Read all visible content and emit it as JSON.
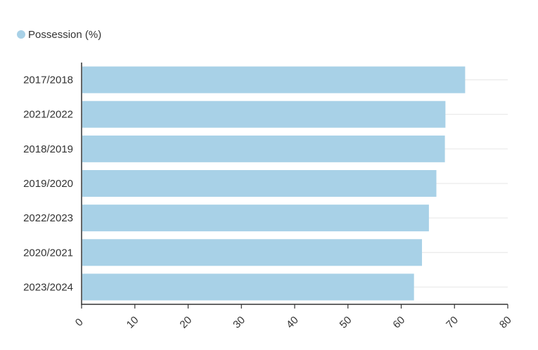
{
  "chart_data": {
    "type": "bar",
    "orientation": "horizontal",
    "categories": [
      "2017/2018",
      "2021/2022",
      "2018/2019",
      "2019/2020",
      "2022/2023",
      "2020/2021",
      "2023/2024"
    ],
    "series": [
      {
        "name": "Possession (%)",
        "values": [
          72,
          68.3,
          68.2,
          66.6,
          65.2,
          63.9,
          62.4
        ]
      }
    ],
    "xlim": [
      0,
      80
    ],
    "xticks": [
      "0",
      "10",
      "20",
      "30",
      "40",
      "50",
      "60",
      "70",
      "80"
    ],
    "grid": true,
    "legend_position": "top-left",
    "colors": {
      "bar": "#a8d1e7",
      "grid": "#e6e6e6",
      "axis": "#333333",
      "text": "#333333"
    }
  }
}
